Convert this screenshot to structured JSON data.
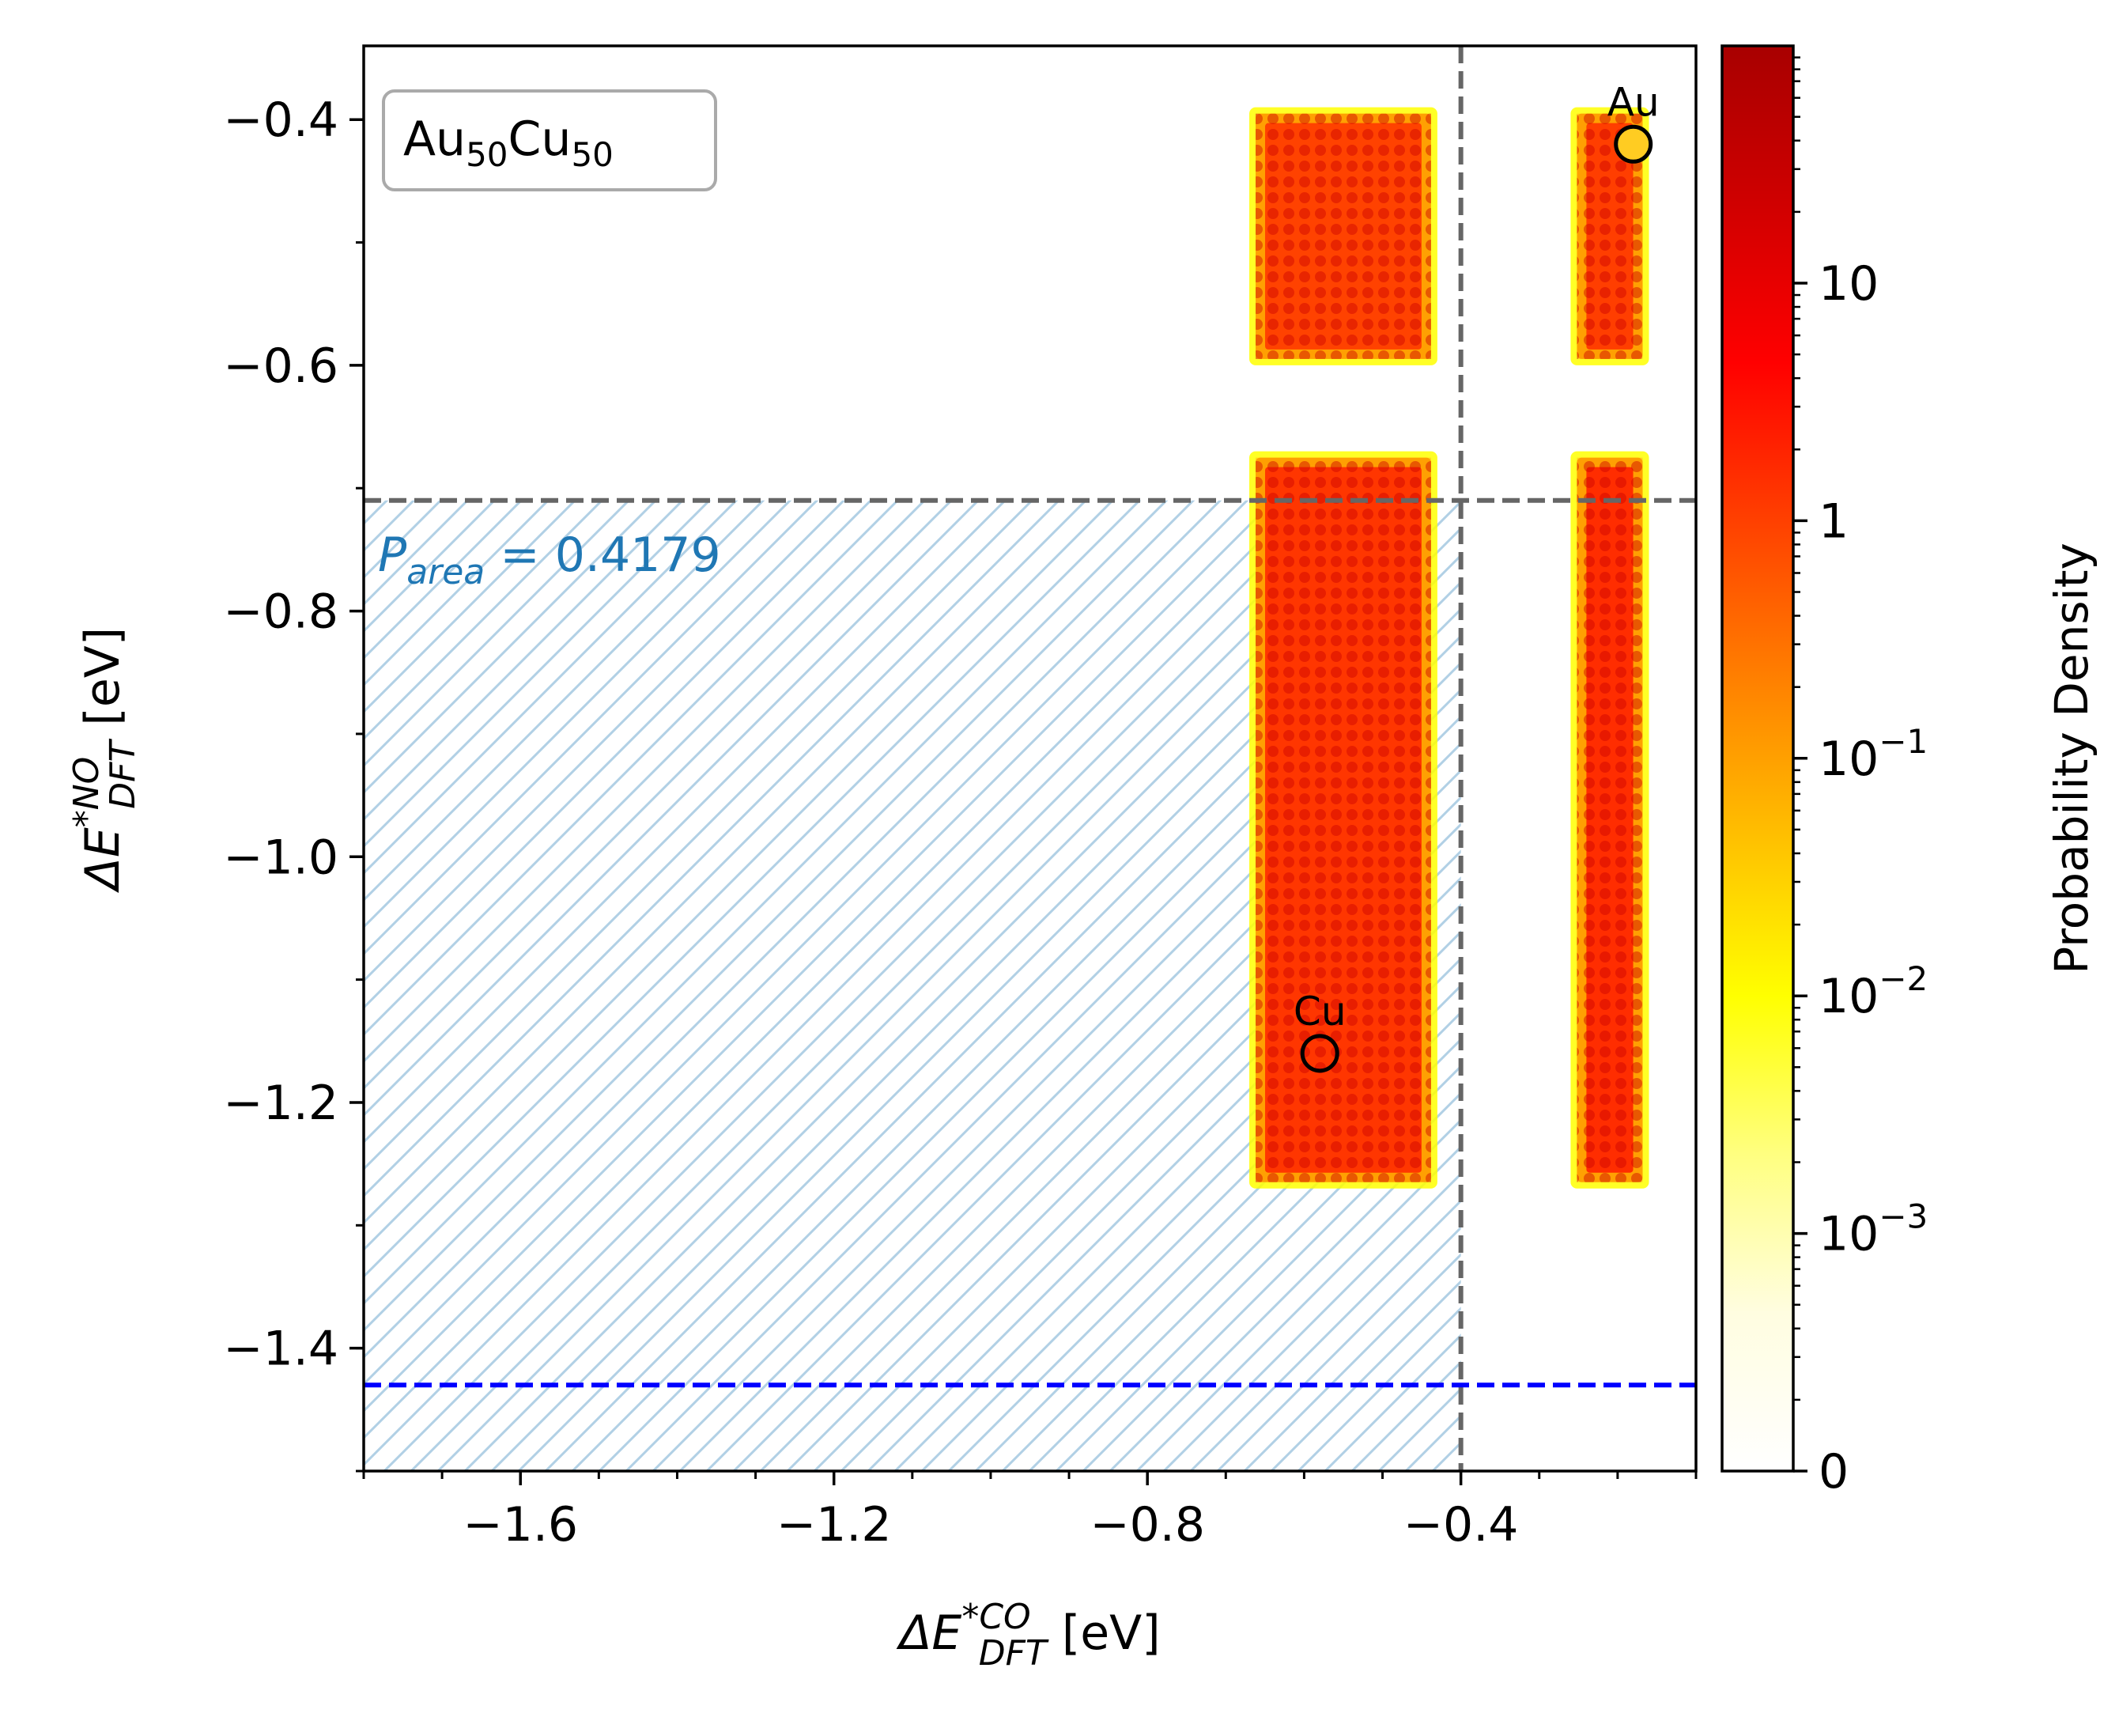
{
  "chart_data": {
    "type": "heatmap",
    "xlabel": {
      "prefix": "ΔE",
      "sup": "*CO",
      "sub": "DFT",
      "suffix": " [eV]"
    },
    "ylabel": {
      "prefix": "ΔE",
      "sup": "*NO",
      "sub": "DFT",
      "suffix": " [eV]"
    },
    "xlim": [
      -1.8,
      -0.1
    ],
    "ylim": [
      -1.5,
      -0.34
    ],
    "x_ticks": [
      -1.6,
      -1.2,
      -0.8,
      -0.4
    ],
    "x_tick_labels": [
      "−1.6",
      "−1.2",
      "−0.8",
      "−0.4"
    ],
    "x_minor_step": 0.1,
    "y_ticks": [
      -1.4,
      -1.2,
      -1.0,
      -0.8,
      -0.6,
      -0.4
    ],
    "y_tick_labels": [
      "−1.4",
      "−1.2",
      "−1.0",
      "−0.8",
      "−0.6",
      "−0.4"
    ],
    "y_minor_step": 0.1,
    "label_box": {
      "base1": "Au",
      "sub1": "50",
      "base2": "Cu",
      "sub2": "50"
    },
    "p_area": {
      "symbol": "P",
      "sub": "area",
      "text": " = 0.4179",
      "color": "#1f77b4"
    },
    "threshold_lines": [
      {
        "orientation": "vertical",
        "value": -0.4,
        "color": "#666666",
        "style": "dashed"
      },
      {
        "orientation": "horizontal",
        "value": -0.71,
        "color": "#666666",
        "style": "dashed"
      },
      {
        "orientation": "horizontal",
        "value": -1.43,
        "color": "#0000ff",
        "style": "dashed"
      }
    ],
    "hatched_region": {
      "x": [
        -1.8,
        -0.4
      ],
      "y": [
        -1.5,
        -0.71
      ],
      "color": "#1f77b4"
    },
    "density_regions": [
      {
        "x": [
          -0.67,
          -0.43
        ],
        "y": [
          -0.6,
          -0.39
        ],
        "peak": 0.75
      },
      {
        "x": [
          -0.67,
          -0.43
        ],
        "y": [
          -1.27,
          -0.67
        ],
        "peak": 0.85
      },
      {
        "x": [
          -0.26,
          -0.16
        ],
        "y": [
          -0.6,
          -0.39
        ],
        "peak": 0.78
      },
      {
        "x": [
          -0.26,
          -0.16
        ],
        "y": [
          -1.27,
          -0.67
        ],
        "peak": 0.92
      }
    ],
    "points": [
      {
        "label": "Au",
        "x": -0.18,
        "y": -0.42,
        "fill": "#ffcc22"
      },
      {
        "label": "Cu",
        "x": -0.58,
        "y": -1.16,
        "fill": "none"
      }
    ],
    "colorbar": {
      "label": "Probability Density",
      "scale": "symlog",
      "ticks": [
        {
          "base": "0",
          "exp": ""
        },
        {
          "base": "10",
          "exp": "−3"
        },
        {
          "base": "10",
          "exp": "−2"
        },
        {
          "base": "10",
          "exp": "−1"
        },
        {
          "base": "1",
          "exp": ""
        },
        {
          "base": "10",
          "exp": ""
        }
      ],
      "colors": [
        "#ffffff",
        "#fffde0",
        "#ffff80",
        "#ffff00",
        "#ffc000",
        "#ff8000",
        "#ff4000",
        "#ff0000",
        "#d00000",
        "#a80000"
      ]
    }
  }
}
